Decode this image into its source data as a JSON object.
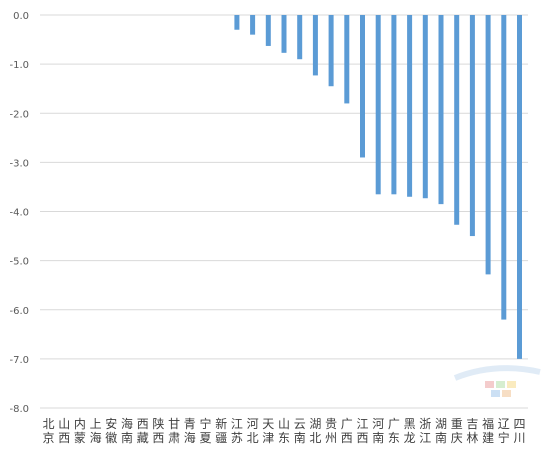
{
  "chart_data": {
    "type": "bar",
    "title": "",
    "xlabel": "",
    "ylabel": "",
    "ylim": [
      -8.0,
      0.0
    ],
    "yticks": [
      "0.0",
      "-1.0",
      "-2.0",
      "-3.0",
      "-4.0",
      "-5.0",
      "-6.0",
      "-7.0",
      "-8.0"
    ],
    "ytick_values": [
      0,
      -1,
      -2,
      -3,
      -4,
      -5,
      -6,
      -7,
      -8
    ],
    "grid": true,
    "bar_color": "#5b9bd5",
    "categories": [
      "北京",
      "山西",
      "内蒙",
      "上海",
      "安徽",
      "海南",
      "西藏",
      "陕西",
      "甘肃",
      "青海",
      "宁夏",
      "新疆",
      "江苏",
      "河北",
      "天津",
      "山东",
      "云南",
      "湖北",
      "贵州",
      "广西",
      "江西",
      "河南",
      "广东",
      "黑龙",
      "浙江",
      "湖南",
      "重庆",
      "吉林",
      "福建",
      "辽宁",
      "四川"
    ],
    "values": [
      0,
      0,
      0,
      0,
      0,
      0,
      0,
      0,
      0,
      0,
      0,
      0,
      -0.3,
      -0.4,
      -0.63,
      -0.77,
      -0.9,
      -1.23,
      -1.45,
      -1.8,
      -2.9,
      -3.65,
      -3.65,
      -3.7,
      -3.73,
      -3.85,
      -4.27,
      -4.5,
      -5.28,
      -6.2,
      -7.0
    ]
  }
}
